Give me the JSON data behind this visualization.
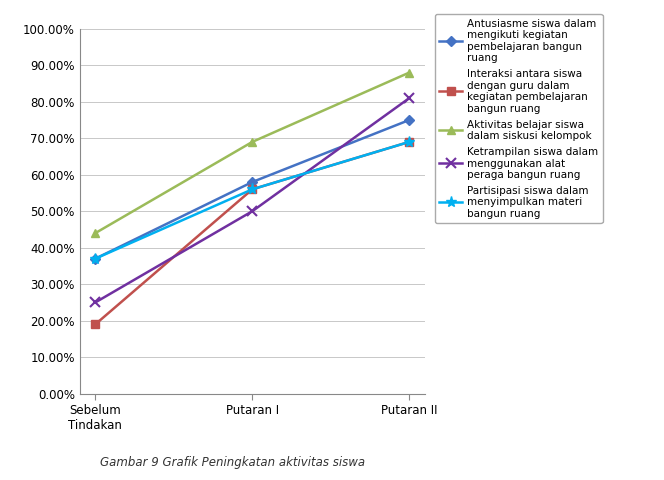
{
  "x_labels": [
    "Sebelum\nTindakan",
    "Putaran I",
    "Putaran II"
  ],
  "series": [
    {
      "label": "Antusiasme siswa dalam\nmengikuti kegiatan\npembelajaran bangun\nruang",
      "values": [
        0.37,
        0.58,
        0.75
      ],
      "color": "#4472C4",
      "marker": "D",
      "markersize": 5
    },
    {
      "label": "Interaksi antara siswa\ndengan guru dalam\nkegiatan pembelajaran\nbangun ruang",
      "values": [
        0.19,
        0.56,
        0.69
      ],
      "color": "#C0504D",
      "marker": "s",
      "markersize": 6
    },
    {
      "label": "Aktivitas belajar siswa\ndalam siskusi kelompok",
      "values": [
        0.44,
        0.69,
        0.88
      ],
      "color": "#9BBB59",
      "marker": "^",
      "markersize": 6
    },
    {
      "label": "Ketrampilan siswa dalam\nmenggunakan alat\nperaga bangun ruang",
      "values": [
        0.25,
        0.5,
        0.81
      ],
      "color": "#7030A0",
      "marker": "x",
      "markersize": 7,
      "markeredgewidth": 1.5
    },
    {
      "label": "Partisipasi siswa dalam\nmenyimpulkan materi\nbangun ruang",
      "values": [
        0.37,
        0.56,
        0.69
      ],
      "color": "#00B0F0",
      "marker": "*",
      "markersize": 8,
      "markeredgewidth": 1.0
    }
  ],
  "ylim": [
    0.0,
    1.0
  ],
  "yticks": [
    0.0,
    0.1,
    0.2,
    0.3,
    0.4,
    0.5,
    0.6,
    0.7,
    0.8,
    0.9,
    1.0
  ],
  "background_color": "#ffffff",
  "legend_fontsize": 7.5,
  "tick_fontsize": 8.5,
  "caption": "Gambar 9 Grafik Peningkatan aktivitas siswa",
  "caption_fontsize": 8.5,
  "linewidth": 1.8
}
